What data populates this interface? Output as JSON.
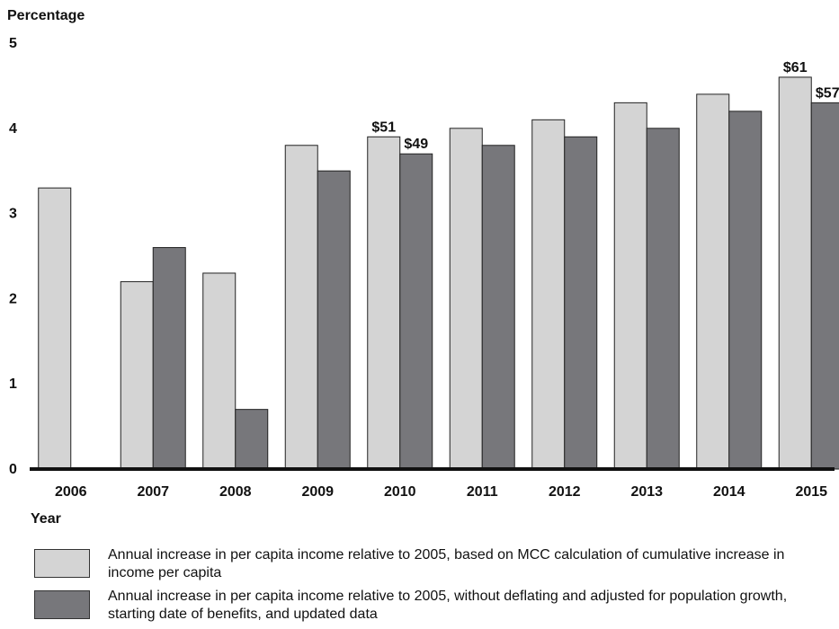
{
  "chart_data": {
    "type": "bar",
    "ylabel": "Percentage",
    "xlabel": "Year",
    "ylim": [
      0,
      5
    ],
    "yticks": [
      0,
      1,
      2,
      3,
      4,
      5
    ],
    "grid": false,
    "categories": [
      "2006",
      "2007",
      "2008",
      "2009",
      "2010",
      "2011",
      "2012",
      "2013",
      "2014",
      "2015"
    ],
    "series": [
      {
        "name": "Annual increase in per capita income relative to 2005, based on MCC calculation of cumulative increase in income per capita",
        "color": "#d4d4d4",
        "values": [
          3.3,
          2.2,
          2.3,
          3.8,
          3.9,
          4.0,
          4.1,
          4.3,
          4.4,
          4.6
        ]
      },
      {
        "name": "Annual increase in per capita income relative to 2005, without deflating and adjusted for population growth, starting date of benefits, and updated data",
        "color": "#77777b",
        "values": [
          null,
          2.6,
          0.7,
          3.5,
          3.7,
          3.8,
          3.9,
          4.0,
          4.2,
          4.3
        ]
      }
    ],
    "annotations": [
      {
        "category": "2010",
        "series": 0,
        "text": "$51"
      },
      {
        "category": "2010",
        "series": 1,
        "text": "$49"
      },
      {
        "category": "2015",
        "series": 0,
        "text": "$61"
      },
      {
        "category": "2015",
        "series": 1,
        "text": "$57"
      }
    ],
    "legend_position": "bottom"
  }
}
